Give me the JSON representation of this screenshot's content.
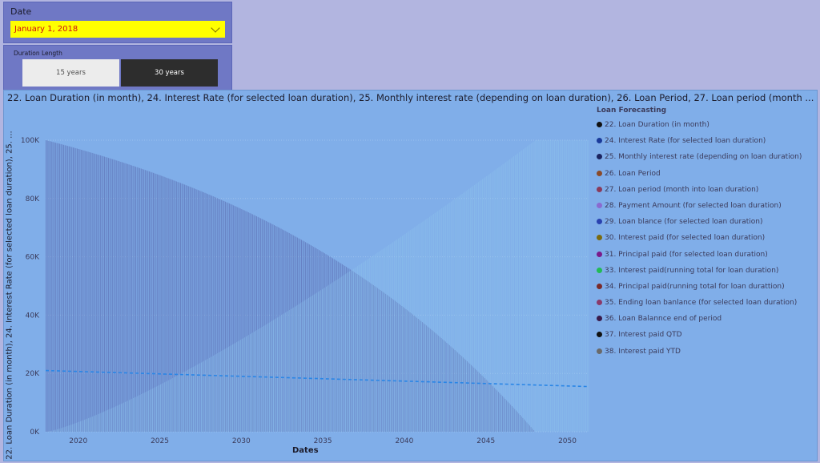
{
  "date_slicer": {
    "label": "Date",
    "value": "January 1, 2018"
  },
  "duration_slicer": {
    "label": "Duration Length",
    "options": [
      {
        "label": "15 years",
        "selected": false
      },
      {
        "label": "30 years",
        "selected": true
      }
    ]
  },
  "chart": {
    "title": "22. Loan Duration (in month), 24. Interest Rate (for selected loan duration), 25. Monthly interest rate (depending on loan duration), 26. Loan Period, 27. Loan period (month ...",
    "ylabel": "22. Loan Duration (in month), 24. Interest Rate (for selected loan duration), 25. ...",
    "xlabel": "Dates",
    "legend_title": "Loan Forecasting"
  },
  "legend": [
    {
      "label": "22. Loan Duration (in month)",
      "color": "#111111"
    },
    {
      "label": "24. Interest Rate (for selected loan duration)",
      "color": "#1a3a9a"
    },
    {
      "label": "25. Monthly interest rate (depending on loan duration)",
      "color": "#1c2460"
    },
    {
      "label": "26. Loan Period",
      "color": "#8a4a2a"
    },
    {
      "label": "27. Loan period (month into loan duration)",
      "color": "#8a3a5a"
    },
    {
      "label": "28. Payment Amount (for selected loan duration)",
      "color": "#8a6ad0"
    },
    {
      "label": "29. Loan blance (for selected loan duration)",
      "color": "#2a42b0"
    },
    {
      "label": "30. Interest paid (for selected loan duration)",
      "color": "#7a6a10"
    },
    {
      "label": "31. Principal paid (for selected loan duration)",
      "color": "#7a1a8a"
    },
    {
      "label": "33. Interest paid(running total for loan duration)",
      "color": "#22bb55"
    },
    {
      "label": "34. Principal paid(running total for loan durattion)",
      "color": "#7a2a2a"
    },
    {
      "label": "35. Ending loan banlance (for selected loan duration)",
      "color": "#8a3a6a"
    },
    {
      "label": "36. Loan Balannce end of period",
      "color": "#3a1a4a"
    },
    {
      "label": "37. Interest paid QTD",
      "color": "#111111"
    },
    {
      "label": "38. Interest paid YTD",
      "color": "#6a6a6a"
    }
  ],
  "chart_data": {
    "type": "bar",
    "title": "22. Loan Duration (in month), 24. Interest Rate (for selected loan duration), 25. Monthly interest rate (depending on loan duration), 26. Loan Period, 27. Loan period (month ...",
    "xlabel": "Dates",
    "ylabel": "22. Loan Duration (in month), 24. Interest Rate (for selected loan duration), 25. ...",
    "x_range": [
      2018,
      2051.3
    ],
    "ylim": [
      0,
      100000
    ],
    "y_ticks": [
      0,
      20000,
      40000,
      60000,
      80000,
      100000
    ],
    "y_tick_labels": [
      "0K",
      "20K",
      "40K",
      "60K",
      "80K",
      "100K"
    ],
    "x_ticks": [
      2020,
      2025,
      2030,
      2035,
      2040,
      2045,
      2050
    ],
    "grid": true,
    "legend_placement": "right",
    "series": [
      {
        "name": "29. Loan blance (for selected loan duration)",
        "start_year": 2018,
        "end_year": 2048,
        "start_value": 100000,
        "end_value": 0,
        "shape": "amortizing-decline"
      },
      {
        "name": "33. Interest paid(running total for loan duration)",
        "start_year": 2018,
        "end_year": 2048,
        "start_value": 0,
        "end_value": 100000,
        "shape": "cumulative-rise"
      },
      {
        "name": "trend",
        "start_year": 2018,
        "end_year": 2051.3,
        "start_value": 21000,
        "end_value": 15500,
        "shape": "dashed-line"
      }
    ]
  }
}
